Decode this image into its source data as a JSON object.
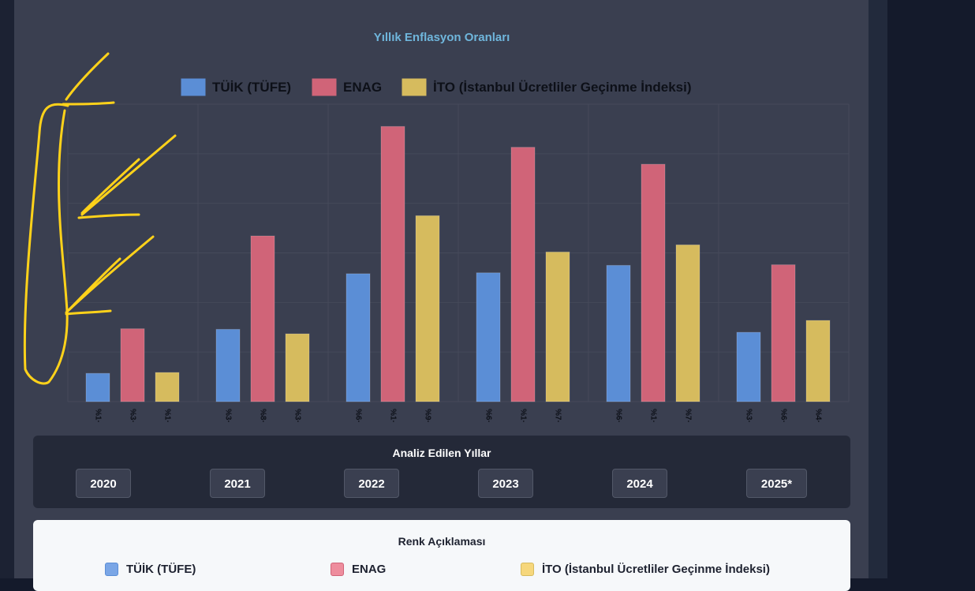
{
  "colors": {
    "tuik": "#5b8ed6",
    "enag": "#d06478",
    "ito": "#d6bb5e",
    "annotation": "#ffd21a"
  },
  "chart_data": {
    "type": "bar",
    "title": "Yıllık Enflasyon Oranları",
    "categories": [
      "2020",
      "2021",
      "2022",
      "2023",
      "2024",
      "2025*"
    ],
    "series": [
      {
        "name": "TÜİK (TÜFE)",
        "values": [
          9.5,
          24.3,
          43.0,
          43.3,
          45.8,
          23.3
        ],
        "tick_labels": [
          "%1·",
          "%3·",
          "%6·",
          "%6·",
          "%6·",
          "%3·"
        ]
      },
      {
        "name": "ENAG",
        "values": [
          24.5,
          55.7,
          92.5,
          85.5,
          79.8,
          46.0
        ],
        "tick_labels": [
          "%3·",
          "%8·",
          "%1·",
          "%1·",
          "%1·",
          "%6·"
        ]
      },
      {
        "name": "İTO (İstanbul Ücretliler Geçinme İndeksi)",
        "values": [
          9.8,
          22.8,
          62.5,
          50.3,
          52.7,
          27.3
        ],
        "tick_labels": [
          "%1·",
          "%3·",
          "%9·",
          "%7·",
          "%7·",
          "%4·"
        ]
      }
    ],
    "ylim": [
      0,
      100
    ],
    "grid": true,
    "legend_position": "top"
  },
  "years_section": {
    "title": "Analiz Edilen Yıllar",
    "years": [
      "2020",
      "2021",
      "2022",
      "2023",
      "2024",
      "2025*"
    ]
  },
  "color_legend": {
    "title": "Renk Açıklaması",
    "items": [
      "TÜİK (TÜFE)",
      "ENAG",
      "İTO (İstanbul Ücretliler Geçinme İndeksi)"
    ]
  }
}
